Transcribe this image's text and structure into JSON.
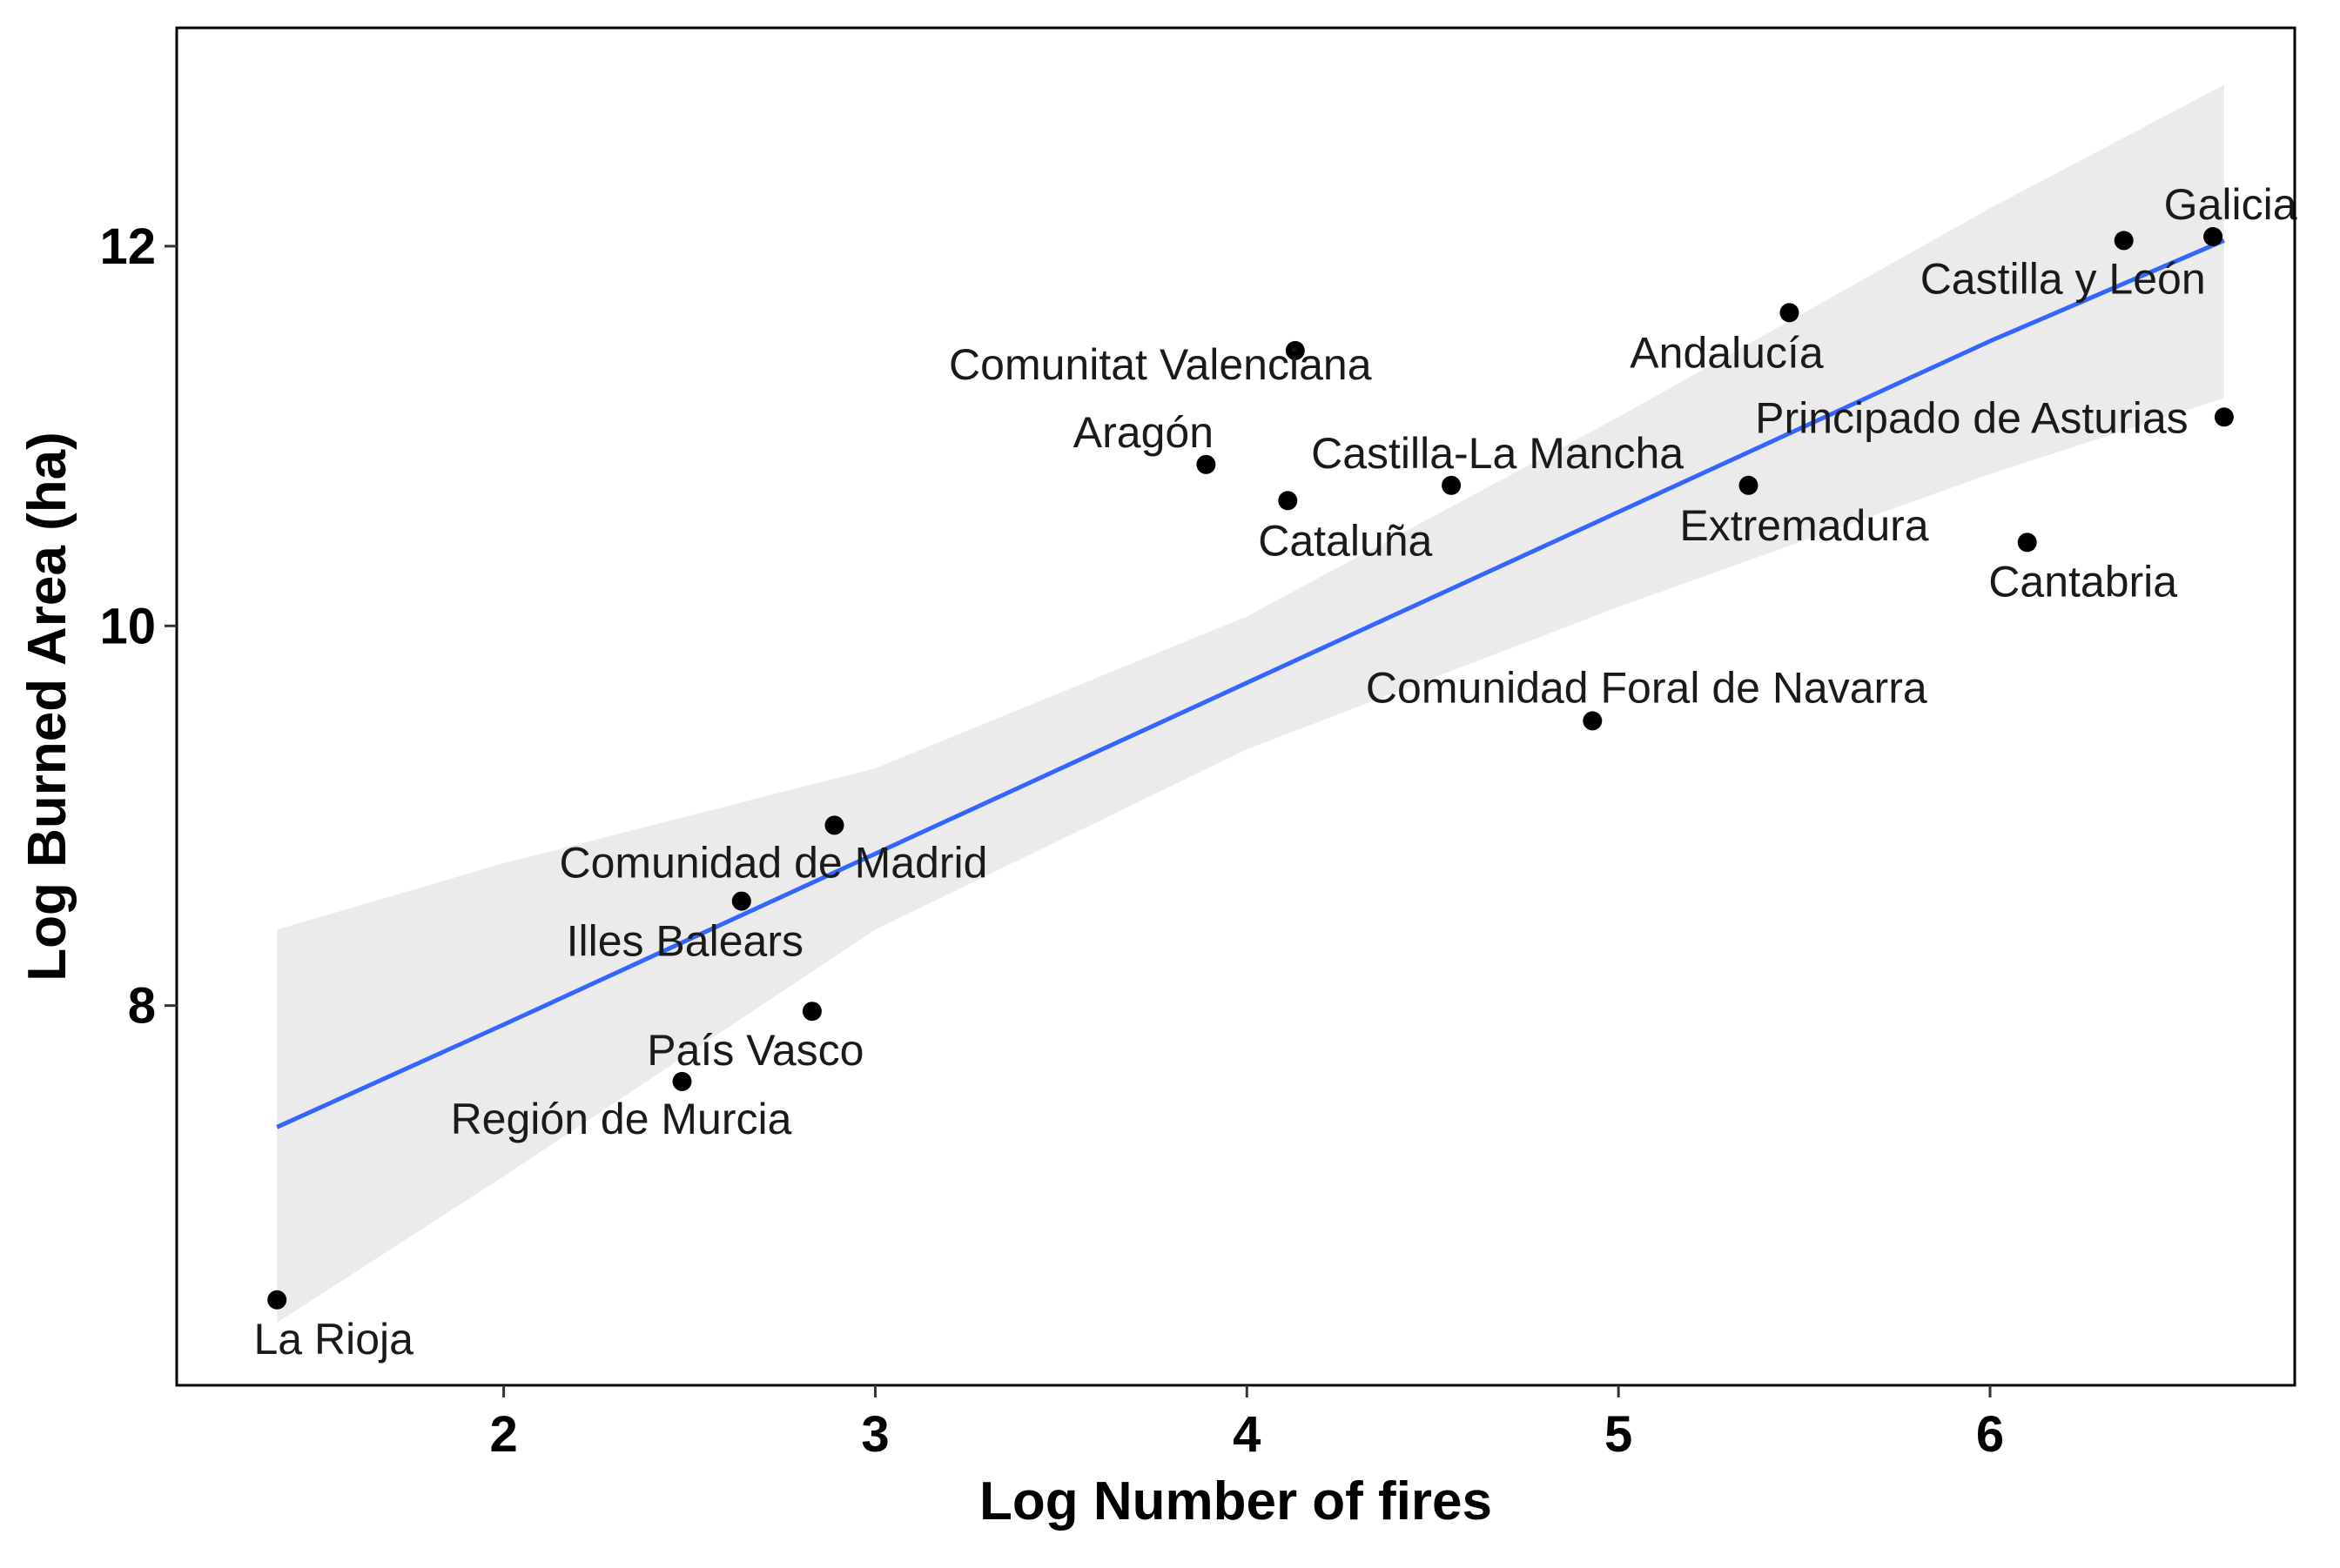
{
  "chart_data": {
    "type": "scatter",
    "title": "",
    "xlabel": "Log Number of fires",
    "ylabel": "Log Burned Area (ha)",
    "xlim": [
      1.12,
      6.82
    ],
    "ylim": [
      6.0,
      13.15
    ],
    "xticks": [
      2,
      3,
      4,
      5,
      6
    ],
    "yticks": [
      8,
      10,
      12
    ],
    "grid": false,
    "legend": "none",
    "points": [
      {
        "label": "La Rioja",
        "x": 1.39,
        "y": 6.45
      },
      {
        "label": "Región de Murcia",
        "x": 2.48,
        "y": 7.6
      },
      {
        "label": "País Vasco",
        "x": 2.83,
        "y": 7.97
      },
      {
        "label": "Illes Balears",
        "x": 2.64,
        "y": 8.55
      },
      {
        "label": "Comunidad de Madrid",
        "x": 2.89,
        "y": 8.95
      },
      {
        "label": "Aragón",
        "x": 3.89,
        "y": 10.85
      },
      {
        "label": "Cataluña",
        "x": 4.11,
        "y": 10.66
      },
      {
        "label": "Comunitat Valenciana",
        "x": 4.13,
        "y": 11.45
      },
      {
        "label": "Castilla-La Mancha",
        "x": 4.55,
        "y": 10.74
      },
      {
        "label": "Comunidad Foral de Navarra",
        "x": 4.93,
        "y": 9.5
      },
      {
        "label": "Extremadura",
        "x": 5.35,
        "y": 10.74
      },
      {
        "label": "Andalucía",
        "x": 5.46,
        "y": 11.65
      },
      {
        "label": "Cantabria",
        "x": 6.1,
        "y": 10.44
      },
      {
        "label": "Castilla y León",
        "x": 6.36,
        "y": 12.03
      },
      {
        "label": "Galicia",
        "x": 6.6,
        "y": 12.05
      },
      {
        "label": "Principado de Asturias",
        "x": 6.63,
        "y": 11.1
      }
    ],
    "fit": {
      "method": "linear regression with confidence band",
      "x": [
        1.39,
        2.0,
        3.0,
        4.0,
        5.0,
        6.0,
        6.63
      ],
      "y": [
        7.36,
        7.9,
        8.8,
        9.7,
        10.6,
        11.5,
        12.03
      ],
      "ci_lower": [
        6.33,
        7.1,
        8.4,
        9.35,
        10.1,
        10.8,
        11.2
      ],
      "ci_upper": [
        8.4,
        8.75,
        9.25,
        10.05,
        11.1,
        12.2,
        12.85
      ],
      "line_color": "#3366FF",
      "band_color": "#EBEBEB"
    },
    "point_color": "#000000"
  }
}
